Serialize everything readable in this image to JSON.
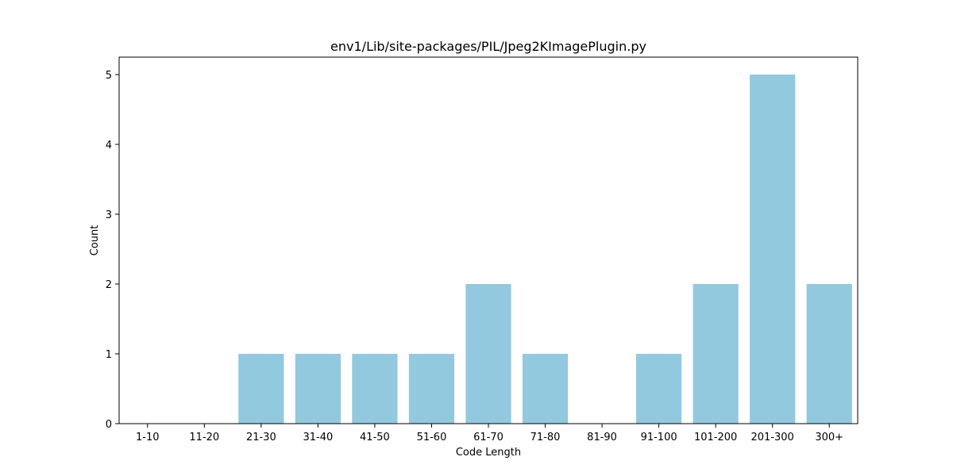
{
  "chart_data": {
    "type": "bar",
    "title": "env1/Lib/site-packages/PIL/Jpeg2KImagePlugin.py",
    "xlabel": "Code Length",
    "ylabel": "Count",
    "categories": [
      "1-10",
      "11-20",
      "21-30",
      "31-40",
      "41-50",
      "51-60",
      "61-70",
      "71-80",
      "81-90",
      "91-100",
      "101-200",
      "201-300",
      "300+"
    ],
    "values": [
      0,
      0,
      1,
      1,
      1,
      1,
      2,
      1,
      0,
      1,
      2,
      5,
      2
    ],
    "ylim": [
      0,
      5.25
    ],
    "yticks": [
      0,
      1,
      2,
      3,
      4,
      5
    ],
    "bar_color": "#92c9de",
    "grid": false,
    "legend": "none"
  }
}
